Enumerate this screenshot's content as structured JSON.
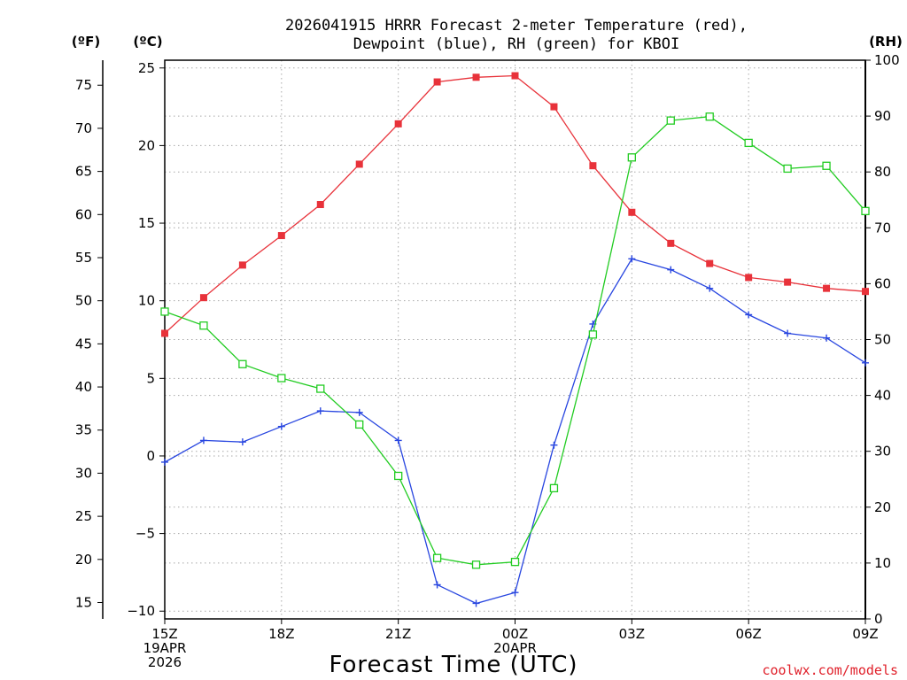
{
  "chart_data": {
    "type": "line",
    "title_line1": "2026041915 HRRR Forecast 2-meter Temperature (red),",
    "title_line2": "Dewpoint (blue), RH (green) for KBOI",
    "xlabel": "Forecast Time (UTC)",
    "credit": "coolwx.com/models",
    "units": {
      "fahrenheit": "(ºF)",
      "celsius": "(ºC)",
      "rh": "(RH)"
    },
    "x_hours": [
      15,
      16,
      17,
      18,
      19,
      20,
      21,
      22,
      23,
      24,
      25,
      26,
      27,
      28,
      29,
      30,
      31,
      32,
      33
    ],
    "x_ticks": [
      {
        "hour": 15,
        "lines": [
          "15Z",
          "19APR",
          "2026"
        ]
      },
      {
        "hour": 18,
        "lines": [
          "18Z"
        ]
      },
      {
        "hour": 21,
        "lines": [
          "21Z"
        ]
      },
      {
        "hour": 24,
        "lines": [
          "00Z",
          "20APR"
        ]
      },
      {
        "hour": 27,
        "lines": [
          "03Z"
        ]
      },
      {
        "hour": 30,
        "lines": [
          "06Z"
        ]
      },
      {
        "hour": 33,
        "lines": [
          "09Z"
        ]
      }
    ],
    "x_range": [
      15,
      33
    ],
    "celsius_axis": {
      "range": [
        -10.5,
        25.5
      ],
      "ticks": [
        -10,
        -5,
        0,
        5,
        10,
        15,
        20,
        25
      ]
    },
    "fahrenheit_axis": {
      "ticks": [
        15,
        20,
        25,
        30,
        35,
        40,
        45,
        50,
        55,
        60,
        65,
        70,
        75
      ]
    },
    "rh_axis": {
      "range": [
        0,
        100
      ],
      "ticks": [
        0,
        10,
        20,
        30,
        40,
        50,
        60,
        70,
        80,
        90,
        100
      ]
    },
    "series": [
      {
        "key": "temperature",
        "axis": "celsius",
        "color": "#e8323a",
        "marker": "filled-square",
        "values": [
          7.9,
          10.2,
          12.3,
          14.2,
          16.2,
          18.8,
          21.4,
          24.1,
          24.4,
          24.5,
          22.5,
          18.7,
          15.7,
          13.7,
          12.4,
          11.5,
          11.2,
          10.8,
          10.6
        ]
      },
      {
        "key": "dewpoint",
        "axis": "celsius",
        "color": "#2846e0",
        "marker": "plus",
        "values": [
          -0.4,
          1.0,
          0.9,
          1.9,
          2.9,
          2.8,
          1.0,
          -8.3,
          -9.5,
          -8.8,
          0.7,
          8.5,
          12.7,
          12.0,
          10.8,
          9.1,
          7.9,
          7.6,
          6.0
        ]
      },
      {
        "key": "rh",
        "axis": "rh",
        "color": "#22cc22",
        "marker": "open-square",
        "values": [
          55,
          52.5,
          45.6,
          43.1,
          41.2,
          34.8,
          25.6,
          10.9,
          9.7,
          10.2,
          23.4,
          50.9,
          82.6,
          89.2,
          89.9,
          85.2,
          80.6,
          81.1,
          73.0
        ]
      }
    ]
  }
}
